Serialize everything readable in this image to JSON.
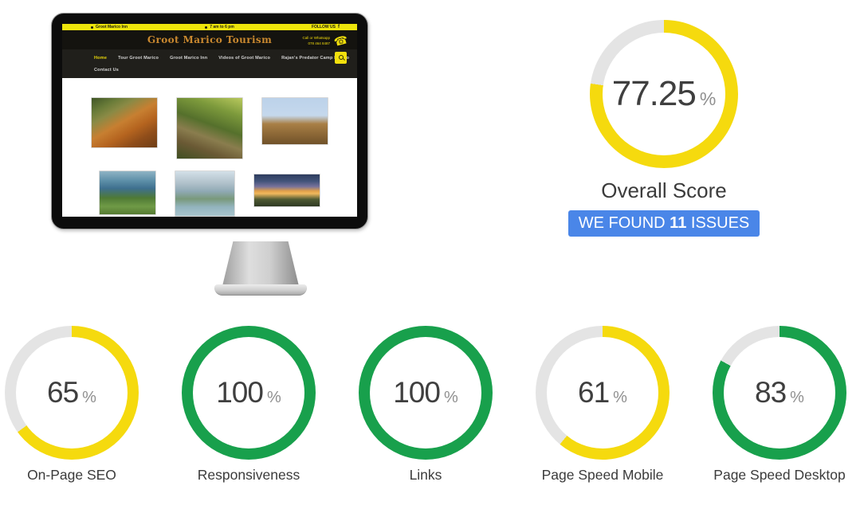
{
  "colors": {
    "yellow": "#F5DA0E",
    "green": "#18A04C",
    "track": "#E4E4E4",
    "blue": "#4A86E8",
    "number": "#3F3F3F",
    "percent_sign": "#8F8F8F",
    "label": "#3B3B3B"
  },
  "overall": {
    "value": "77.25",
    "unit": "%",
    "pct": 77.25,
    "color_key": "yellow",
    "label": "Overall Score",
    "badge": {
      "prefix": "WE FOUND ",
      "count": "11",
      "suffix": " ISSUES"
    }
  },
  "metrics": [
    {
      "label": "On-Page SEO",
      "value": "65",
      "unit": "%",
      "pct": 65,
      "color_key": "yellow"
    },
    {
      "label": "Responsiveness",
      "value": "100",
      "unit": "%",
      "pct": 100,
      "color_key": "green"
    },
    {
      "label": "Links",
      "value": "100",
      "unit": "%",
      "pct": 100,
      "color_key": "green"
    },
    {
      "label": "Page Speed Mobile",
      "value": "61",
      "unit": "%",
      "pct": 61,
      "color_key": "yellow"
    },
    {
      "label": "Page Speed Desktop",
      "value": "83",
      "unit": "%",
      "pct": 83,
      "color_key": "green"
    }
  ],
  "chart_data": [
    {
      "type": "pie",
      "title": "Overall Score",
      "labels": [
        "score",
        "remaining"
      ],
      "values": [
        77.25,
        22.75
      ],
      "colors": [
        "#F5DA0E",
        "#E4E4E4"
      ],
      "center_label": "77.25 %",
      "start_angle": "top",
      "direction": "clockwise"
    },
    {
      "type": "pie",
      "title": "On-Page SEO",
      "labels": [
        "score",
        "remaining"
      ],
      "values": [
        65,
        35
      ],
      "colors": [
        "#F5DA0E",
        "#E4E4E4"
      ],
      "center_label": "65 %",
      "start_angle": "top",
      "direction": "clockwise"
    },
    {
      "type": "pie",
      "title": "Responsiveness",
      "labels": [
        "score",
        "remaining"
      ],
      "values": [
        100,
        0
      ],
      "colors": [
        "#18A04C",
        "#E4E4E4"
      ],
      "center_label": "100 %",
      "start_angle": "top",
      "direction": "clockwise"
    },
    {
      "type": "pie",
      "title": "Links",
      "labels": [
        "score",
        "remaining"
      ],
      "values": [
        100,
        0
      ],
      "colors": [
        "#18A04C",
        "#E4E4E4"
      ],
      "center_label": "100 %",
      "start_angle": "top",
      "direction": "clockwise"
    },
    {
      "type": "pie",
      "title": "Page Speed Mobile",
      "labels": [
        "score",
        "remaining"
      ],
      "values": [
        61,
        39
      ],
      "colors": [
        "#F5DA0E",
        "#E4E4E4"
      ],
      "center_label": "61 %",
      "start_angle": "top",
      "direction": "clockwise"
    },
    {
      "type": "pie",
      "title": "Page Speed Desktop",
      "labels": [
        "score",
        "remaining"
      ],
      "values": [
        83,
        17
      ],
      "colors": [
        "#18A04C",
        "#E4E4E4"
      ],
      "center_label": "83 %",
      "start_angle": "top",
      "direction": "clockwise"
    }
  ],
  "website": {
    "topbar": {
      "left": "Groot Marico Inn",
      "hours": "7 am to 6 pm",
      "follow": "FOLLOW US",
      "facebook": "f"
    },
    "header": {
      "title": "Groot Marico Tourism",
      "contact_line1": "Call or Whatsapp",
      "contact_line2": "078 464 8487",
      "phone_glyph": "☎"
    },
    "nav": {
      "items": [
        "Home",
        "Tour Groot Marico",
        "Groot Marico Inn",
        "Videos of Groot Marico",
        "Rajan's Predator Camp Marico"
      ],
      "row2": "Contact Us"
    },
    "gallery": [
      {
        "name": "tiger-roaring"
      },
      {
        "name": "leopard-in-tree"
      },
      {
        "name": "lion-and-cubs"
      },
      {
        "name": "wetland-boat"
      },
      {
        "name": "river-landscape"
      },
      {
        "name": "sunset-over-hills"
      }
    ]
  }
}
